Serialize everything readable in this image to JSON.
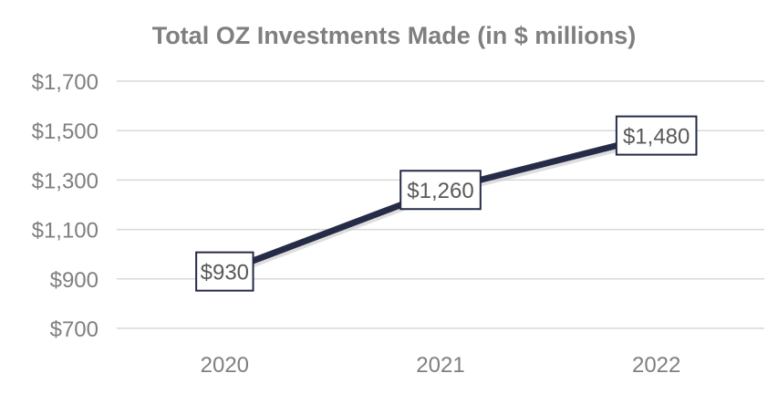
{
  "chart_data": {
    "type": "line",
    "title": "Total OZ Investments Made (in $ millions)",
    "categories": [
      "2020",
      "2021",
      "2022"
    ],
    "series": [
      {
        "values": [
          930,
          1260,
          1480
        ]
      }
    ],
    "data_labels": [
      "$930",
      "$1,260",
      "$1,480"
    ],
    "y_ticks": [
      700,
      900,
      1100,
      1300,
      1500,
      1700
    ],
    "y_tick_labels": [
      "$700",
      "$900",
      "$1,100",
      "$1,300",
      "$1,500",
      "$1,700"
    ],
    "ylim": [
      700,
      1700
    ],
    "grid": true,
    "legend": "none",
    "line_color": "#262b47",
    "text_color": "#7f7f7f"
  }
}
